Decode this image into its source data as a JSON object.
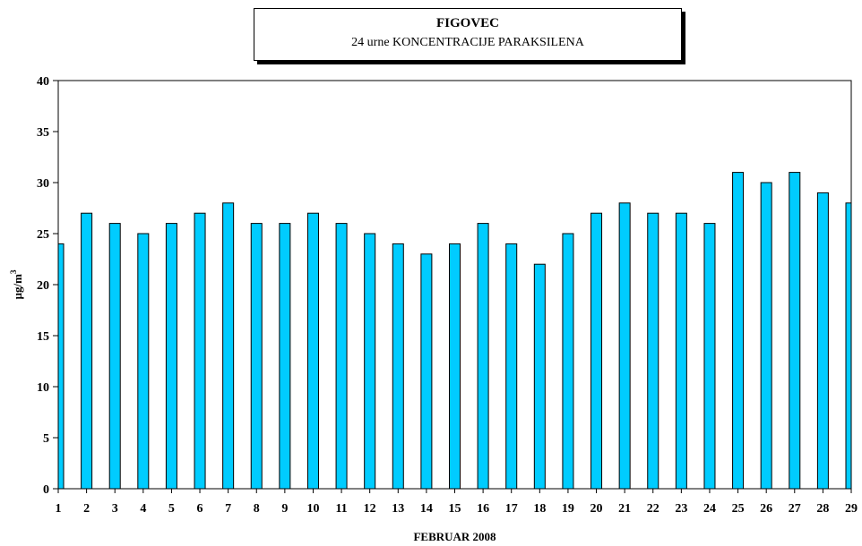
{
  "chart_data": {
    "type": "bar",
    "title": "FIGOVEC",
    "subtitle": "24 urne KONCENTRACIJE PARAKSILENA",
    "xlabel": "FEBRUAR 2008",
    "ylabel_base": "µg/m",
    "ylabel_sup": "3",
    "ylim": [
      0,
      40
    ],
    "yticks": [
      0,
      5,
      10,
      15,
      20,
      25,
      30,
      35,
      40
    ],
    "categories": [
      "1",
      "2",
      "3",
      "4",
      "5",
      "6",
      "7",
      "8",
      "9",
      "10",
      "11",
      "12",
      "13",
      "14",
      "15",
      "16",
      "17",
      "18",
      "19",
      "20",
      "21",
      "22",
      "23",
      "24",
      "25",
      "26",
      "27",
      "28",
      "29"
    ],
    "values": [
      24,
      27,
      26,
      25,
      26,
      27,
      28,
      26,
      26,
      27,
      26,
      25,
      24,
      23,
      24,
      26,
      24,
      22,
      25,
      27,
      28,
      27,
      27,
      26,
      31,
      30,
      31,
      29,
      28
    ],
    "bar_color": "#00CCFF",
    "grid": false,
    "legend": "none"
  }
}
